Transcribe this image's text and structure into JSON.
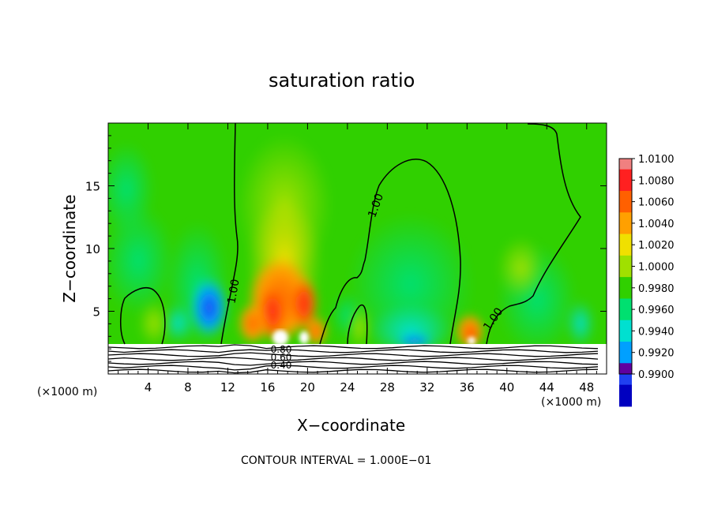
{
  "chart_data": {
    "type": "heatmap",
    "title": "saturation ratio",
    "xlabel": "X−coordinate",
    "ylabel": "Z−coordinate",
    "x_unit": "(×1000 m)",
    "y_unit": "(×1000 m)",
    "xlim": [
      0,
      50
    ],
    "ylim": [
      0,
      20
    ],
    "x_ticks": [
      4,
      8,
      12,
      16,
      20,
      24,
      28,
      32,
      36,
      40,
      44,
      48
    ],
    "y_ticks": [
      5,
      10,
      15
    ],
    "footer": "CONTOUR INTERVAL = 1.000E−01",
    "colorbar": {
      "levels": [
        "1.0100",
        "1.0080",
        "1.0060",
        "1.0040",
        "1.0020",
        "1.0000",
        "0.9980",
        "0.9960",
        "0.9940",
        "0.9920",
        "0.9900"
      ],
      "colors": [
        "#f08080",
        "#ff2020",
        "#ff6000",
        "#ffa000",
        "#f0e000",
        "#a0e000",
        "#30d000",
        "#00e070",
        "#00e0d0",
        "#00a0ff",
        "#2040f0",
        "#0000c0",
        "#6000a0"
      ]
    },
    "contour_labels": [
      "1.00",
      "1.00",
      "1.00",
      "1.00",
      "0.80",
      "0.60",
      "0.40"
    ],
    "base_value": "1.0000"
  }
}
